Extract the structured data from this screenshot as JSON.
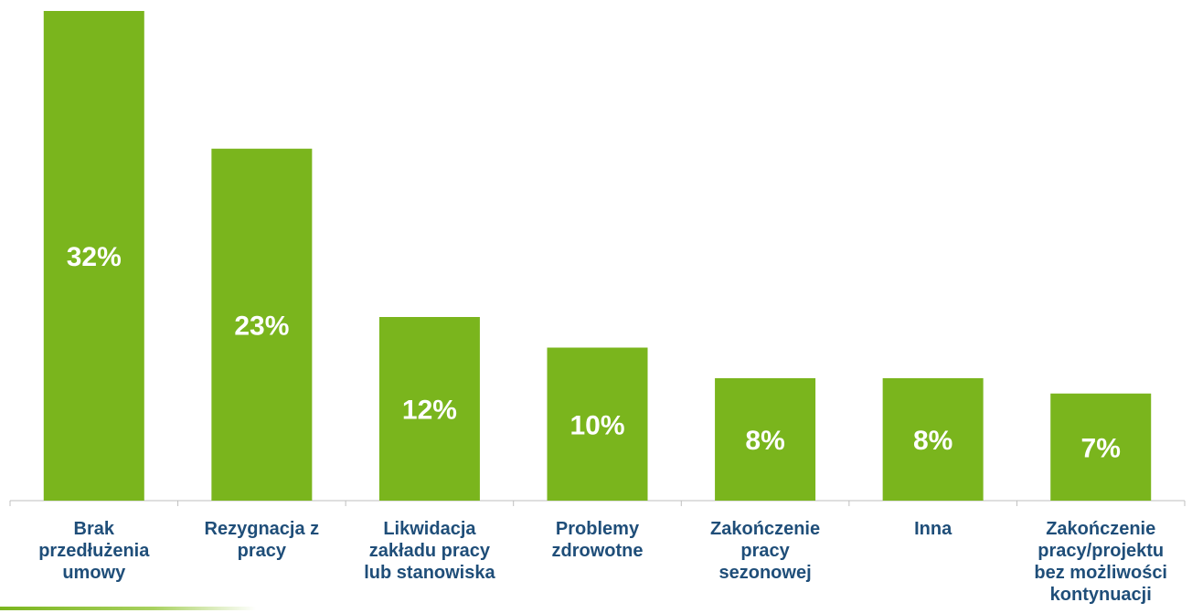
{
  "colors": {
    "bar": "#7ab51d",
    "value_text": "#ffffff",
    "category_text": "#1f4e79",
    "axis": "#bfbfbf"
  },
  "chart_data": {
    "type": "bar",
    "title": "",
    "xlabel": "",
    "ylabel": "",
    "ylim": [
      0,
      32
    ],
    "grid": false,
    "legend": "none",
    "categories": [
      [
        "Brak",
        "przedłużenia",
        "umowy"
      ],
      [
        "Rezygnacja z",
        "pracy"
      ],
      [
        "Likwidacja",
        "zakładu pracy",
        "lub stanowiska"
      ],
      [
        "Problemy",
        "zdrowotne"
      ],
      [
        "Zakończenie",
        "pracy",
        "sezonowej"
      ],
      [
        "Inna"
      ],
      [
        "Zakończenie",
        "pracy/projektu",
        "bez możliwości",
        "kontynuacji"
      ]
    ],
    "values": [
      32,
      23,
      12,
      10,
      8,
      8,
      7
    ],
    "value_labels": [
      "32%",
      "23%",
      "12%",
      "10%",
      "8%",
      "8%",
      "7%"
    ]
  }
}
